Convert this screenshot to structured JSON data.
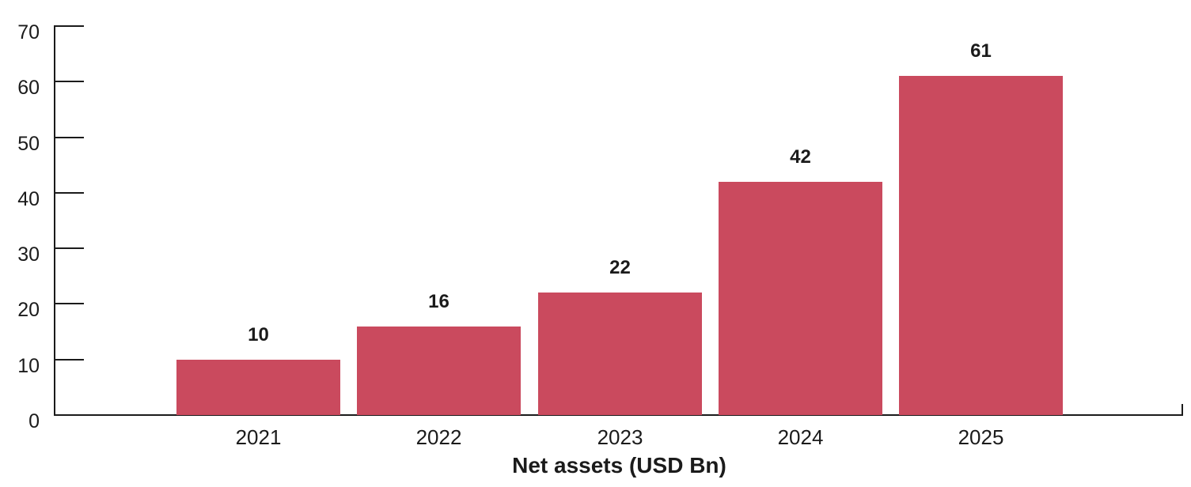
{
  "chart_data": {
    "type": "bar",
    "title": "",
    "xlabel": "Net assets (USD Bn)",
    "ylabel": "",
    "categories": [
      "2021",
      "2022",
      "2023",
      "2024",
      "2025"
    ],
    "values": [
      10,
      16,
      22,
      42,
      61
    ],
    "bar_value_labels": [
      "10",
      "16",
      "22",
      "42",
      "61"
    ],
    "ylim": [
      0,
      70
    ],
    "yticks": [
      0,
      10,
      20,
      30,
      40,
      50,
      60,
      70
    ],
    "grid": false,
    "legend": "none",
    "colors": {
      "bar": "#CA4A5E",
      "axis": "#1B1B1B",
      "text": "#1B1B1B",
      "background": "#FFFFFF"
    }
  }
}
